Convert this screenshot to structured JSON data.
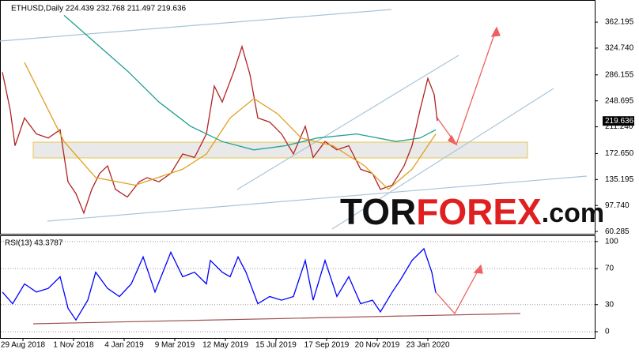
{
  "chart_data": [
    {
      "type": "line",
      "title": "ETHUSD,Daily 224.439 232.768 211.497 219.636",
      "xlim": [
        "2018-08-01",
        "2020-08-21"
      ],
      "ylim": [
        57,
        393
      ],
      "yticks": [
        60.285,
        {
          "value": 97.74,
          "label": "97.740"
        },
        135.195,
        {
          "value": 172.65,
          "label": "172.650"
        },
        {
          "value": 211.24,
          "label": "211.240"
        },
        248.695,
        286.155,
        {
          "value": 324.74,
          "label": "324.740"
        },
        362.195
      ],
      "grid": false,
      "series": [
        {
          "color": "#b22222",
          "x": [
            "2018-08-03",
            "2018-08-13",
            "2018-08-19",
            "2018-08-31",
            "2018-09-15",
            "2018-09-30",
            "2018-10-15",
            "2018-10-25",
            "2018-11-04",
            "2018-11-14",
            "2018-11-24",
            "2018-12-04",
            "2018-12-14",
            "2018-12-24",
            "2019-01-08",
            "2019-01-23",
            "2019-02-02",
            "2019-02-17",
            "2019-03-04",
            "2019-03-19",
            "2019-04-03",
            "2019-04-18",
            "2019-04-28",
            "2019-05-08",
            "2019-05-23",
            "2019-06-02",
            "2019-06-12",
            "2019-06-22",
            "2019-07-07",
            "2019-07-22",
            "2019-08-06",
            "2019-08-21",
            "2019-08-31",
            "2019-09-15",
            "2019-09-30",
            "2019-10-15",
            "2019-10-30",
            "2019-11-14",
            "2019-11-24",
            "2019-12-09",
            "2019-12-24",
            "2020-01-03",
            "2020-01-13",
            "2020-01-23",
            "2020-01-31",
            "2020-02-04"
          ],
          "values": [
            290,
            235,
            184,
            224,
            201,
            195,
            207,
            132,
            115,
            87,
            121,
            144,
            155,
            121,
            110,
            132,
            138,
            132,
            144,
            172,
            167,
            201,
            270,
            247,
            292,
            327,
            287,
            224,
            218,
            201,
            172,
            212,
            167,
            190,
            178,
            184,
            150,
            144,
            121,
            127,
            155,
            184,
            235,
            281,
            258,
            219.636
          ]
        },
        {
          "color": "#e0a020",
          "x": [
            "2018-08-31",
            "2018-10-20",
            "2018-11-29",
            "2019-01-18",
            "2019-03-19",
            "2019-04-18",
            "2019-05-18",
            "2019-06-17",
            "2019-07-17",
            "2019-08-16",
            "2019-09-25",
            "2019-11-04",
            "2019-12-04",
            "2020-01-03",
            "2020-02-02"
          ],
          "values": [
            304,
            190,
            138,
            127,
            150,
            172,
            224,
            252,
            230,
            195,
            184,
            155,
            121,
            150,
            201
          ]
        },
        {
          "color": "#20a090",
          "x": [
            "2018-10-20",
            "2018-11-29",
            "2019-01-08",
            "2019-02-17",
            "2019-03-29",
            "2019-05-08",
            "2019-06-17",
            "2019-07-27",
            "2019-09-05",
            "2019-10-25",
            "2019-12-14",
            "2020-01-13",
            "2020-02-02"
          ],
          "values": [
            372,
            332,
            292,
            247,
            212,
            190,
            178,
            184,
            195,
            201,
            190,
            195,
            207
          ]
        }
      ]
    },
    {
      "type": "line",
      "title": "RSI(13) 43.3787",
      "xlim": [
        "2018-08-01",
        "2020-08-21"
      ],
      "ylim": [
        -7,
        106
      ],
      "yticks": [
        0,
        30,
        70,
        100
      ],
      "grid": true,
      "xticks": [
        {
          "value": "2018-08-29",
          "label": "29 Aug 2018"
        },
        {
          "value": "2018-11-01",
          "label": "1 Nov 2018"
        },
        {
          "value": "2019-01-04",
          "label": "4 Jan 2019"
        },
        {
          "value": "2019-03-09",
          "label": "9 Mar 2019"
        },
        {
          "value": "2019-05-12",
          "label": "12 May 2019"
        },
        {
          "value": "2019-07-15",
          "label": "15 Jul 2019"
        },
        {
          "value": "2019-09-17",
          "label": "17 Sep 2019"
        },
        {
          "value": "2019-11-20",
          "label": "20 Nov 2019"
        },
        {
          "value": "2020-01-23",
          "label": "23 Jan 2020"
        }
      ],
      "series": [
        {
          "color": "#0000ff",
          "x": [
            "2018-08-03",
            "2018-08-16",
            "2018-08-31",
            "2018-09-15",
            "2018-09-30",
            "2018-10-15",
            "2018-10-25",
            "2018-11-04",
            "2018-11-19",
            "2018-11-29",
            "2018-12-14",
            "2018-12-29",
            "2019-01-13",
            "2019-01-28",
            "2019-02-12",
            "2019-03-04",
            "2019-03-19",
            "2019-04-03",
            "2019-04-18",
            "2019-04-23",
            "2019-05-08",
            "2019-05-18",
            "2019-05-28",
            "2019-06-07",
            "2019-06-22",
            "2019-07-07",
            "2019-07-22",
            "2019-08-06",
            "2019-08-21",
            "2019-08-31",
            "2019-09-15",
            "2019-09-30",
            "2019-10-15",
            "2019-10-30",
            "2019-11-14",
            "2019-11-24",
            "2019-12-09",
            "2019-12-19",
            "2020-01-03",
            "2020-01-18",
            "2020-01-28",
            "2020-02-02"
          ],
          "values": [
            44,
            31,
            53,
            44,
            48,
            61,
            26,
            13,
            35,
            66,
            48,
            39,
            53,
            83,
            44,
            88,
            61,
            66,
            53,
            79,
            66,
            61,
            83,
            66,
            31,
            39,
            35,
            39,
            79,
            35,
            79,
            39,
            61,
            31,
            35,
            22,
            44,
            57,
            79,
            92,
            66,
            43.3787
          ]
        }
      ]
    }
  ],
  "watermark": [
    "TOR",
    "FOREX",
    ".com"
  ]
}
